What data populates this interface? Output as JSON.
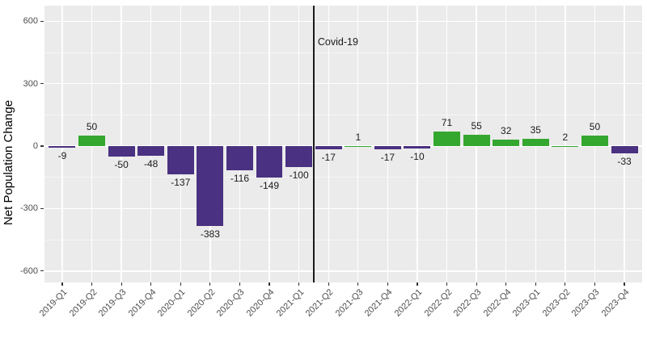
{
  "chart_data": {
    "type": "bar",
    "title": "",
    "xlabel": "",
    "ylabel": "Net Population Change",
    "categories": [
      "2019-Q1",
      "2019-Q2",
      "2019-Q3",
      "2019-Q4",
      "2020-Q1",
      "2020-Q2",
      "2020-Q3",
      "2020-Q4",
      "2021-Q1",
      "2021-Q2",
      "2021-Q3",
      "2021-Q4",
      "2022-Q1",
      "2022-Q2",
      "2022-Q3",
      "2022-Q4",
      "2023-Q1",
      "2023-Q2",
      "2023-Q3",
      "2023-Q4"
    ],
    "values": [
      -9,
      50,
      -50,
      -48,
      -137,
      -383,
      -116,
      -149,
      -100,
      -17,
      1,
      -17,
      -10,
      71,
      55,
      32,
      35,
      2,
      50,
      -33
    ],
    "bar_labels": [
      "-9",
      "50",
      "-50",
      "-48",
      "-137",
      "-383",
      "-116",
      "-149",
      "-100",
      "-17",
      "1",
      "-17",
      "-10",
      "71",
      "55",
      "32",
      "35",
      "2",
      "50",
      "-33"
    ],
    "yticks": [
      600,
      300,
      0,
      -300,
      -600
    ],
    "minor_yticks": [
      450,
      150,
      -150,
      -450
    ],
    "ylim": [
      -655,
      675
    ],
    "grid": true,
    "legend": false,
    "bar_width_fraction": 0.9,
    "annotation": {
      "label": "Covid-19",
      "vline_between_categories": [
        "2021-Q1",
        "2021-Q2"
      ],
      "vline_x": 9.5
    },
    "colors": {
      "positive_bar": "#34A72F",
      "negative_bar": "#4A3181",
      "panel_background": "#EBEBEB",
      "gridline": "#FFFFFF",
      "tick_mark": "#333333",
      "tick_label": "#4D4D4D",
      "value_label": "#1A1A1A",
      "vline": "#1A1A1A"
    }
  }
}
